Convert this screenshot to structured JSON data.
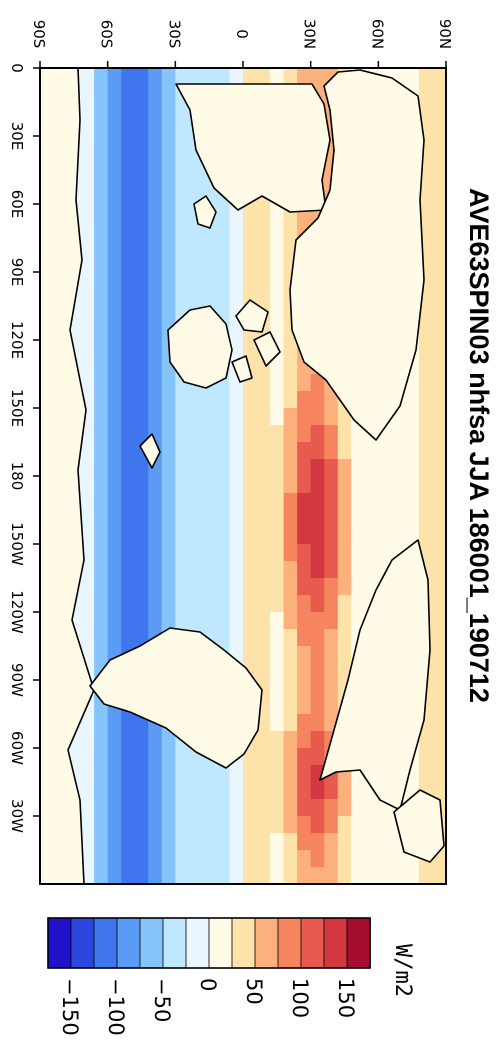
{
  "title": "AVE63SPIN03 nhfsa JJA 186001_190712",
  "units": "W/m2",
  "lon_ticks": [
    "0",
    "30E",
    "60E",
    "90E",
    "120E",
    "150E",
    "180",
    "150W",
    "120W",
    "90W",
    "60W",
    "30W"
  ],
  "lat_ticks": [
    "90S",
    "60S",
    "30S",
    "0",
    "30N",
    "60N",
    "90N"
  ],
  "colorbar": {
    "labels": [
      "−150",
      "−100",
      "−50",
      "0",
      "50",
      "100",
      "150"
    ],
    "colors": [
      "#1f12c9",
      "#2c46de",
      "#3f76ee",
      "#5a9cf5",
      "#85c3fb",
      "#bfe7fd",
      "#eaf6ff",
      "#fffbe6",
      "#fde2a9",
      "#fcb07c",
      "#f5845f",
      "#e85a4e",
      "#d33840",
      "#a50e2e"
    ]
  },
  "chart_data": {
    "type": "heatmap",
    "title": "AVE63SPIN03 nhfsa JJA 186001_190712",
    "xlabel": "",
    "ylabel": "",
    "x_ticks": [
      "0",
      "30E",
      "60E",
      "90E",
      "120E",
      "150E",
      "180",
      "150W",
      "120W",
      "90W",
      "60W",
      "30W"
    ],
    "y_ticks": [
      "90S",
      "60S",
      "30S",
      "0",
      "30N",
      "60N",
      "90N"
    ],
    "xlim": [
      0,
      360
    ],
    "ylim": [
      -90,
      90
    ],
    "colorbar_levels": [
      -150,
      -125,
      -100,
      -75,
      -50,
      -25,
      0,
      25,
      50,
      75,
      100,
      125,
      150
    ],
    "units": "W/m2",
    "projection": "cylindrical equidistant, plot rotated 90 degrees",
    "field_summary": "Southern (winter) hemisphere oceans show negative values down to about -150 W/m2 near 40-60S; northern subtropical oceans show positive values up to about 150 W/m2; land near 0."
  }
}
